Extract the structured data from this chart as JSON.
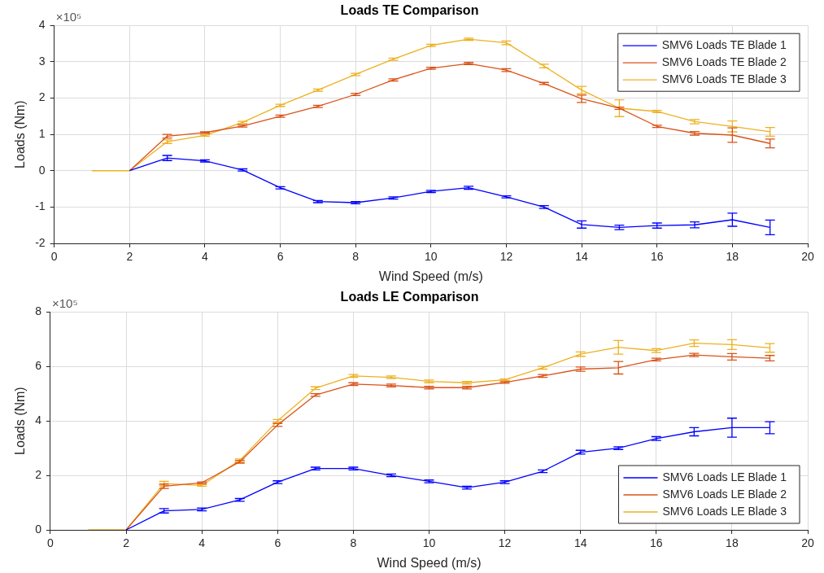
{
  "chart_data": [
    {
      "type": "line",
      "title": "Loads TE Comparison",
      "xlabel": "Wind Speed (m/s)",
      "ylabel": "Loads (Nm)",
      "annotations": [
        "×10⁵"
      ],
      "x": [
        1,
        2,
        3,
        4,
        5,
        6,
        7,
        8,
        9,
        10,
        11,
        12,
        13,
        14,
        15,
        16,
        17,
        18,
        19
      ],
      "xlim": [
        0,
        20
      ],
      "xticks": [
        0,
        2,
        4,
        6,
        8,
        10,
        12,
        14,
        16,
        18,
        20
      ],
      "ylim": [
        -2,
        4
      ],
      "yticks": [
        -2,
        -1,
        0,
        1,
        2,
        3,
        4
      ],
      "grid": true,
      "legend": "top right",
      "marker": "none",
      "line_style": "solid",
      "series": [
        {
          "name": "SMV6 Loads TE Blade 1",
          "color": "#0000ff",
          "values": [
            null,
            0,
            0.35,
            0.27,
            0.02,
            -0.47,
            -0.85,
            -0.88,
            -0.75,
            -0.57,
            -0.47,
            -0.72,
            -1.0,
            -1.48,
            -1.56,
            -1.51,
            -1.49,
            -1.35,
            -1.56
          ],
          "errors": [
            null,
            null,
            0.07,
            0.03,
            0.03,
            0.03,
            0.03,
            0.03,
            0.03,
            0.03,
            0.04,
            0.03,
            0.04,
            0.1,
            0.06,
            0.07,
            0.08,
            0.18,
            0.2
          ]
        },
        {
          "name": "SMV6 Loads TE Blade 2",
          "color": "#d95319",
          "values": [
            null,
            0,
            0.95,
            1.05,
            1.23,
            1.5,
            1.77,
            2.1,
            2.5,
            2.82,
            2.95,
            2.77,
            2.4,
            1.98,
            1.72,
            1.22,
            1.03,
            0.98,
            0.75
          ],
          "errors": [
            null,
            null,
            0.05,
            0.02,
            0.03,
            0.03,
            0.03,
            0.03,
            0.03,
            0.03,
            0.03,
            0.04,
            0.03,
            0.1,
            0.03,
            0.03,
            0.05,
            0.2,
            0.12
          ]
        },
        {
          "name": "SMV6 Loads TE Blade 3",
          "color": "#edb120",
          "values": [
            0,
            0,
            0.8,
            0.97,
            1.33,
            1.8,
            2.22,
            2.65,
            3.07,
            3.45,
            3.62,
            3.52,
            2.88,
            2.22,
            1.72,
            1.63,
            1.35,
            1.22,
            1.07
          ],
          "errors": [
            null,
            null,
            0.05,
            0.02,
            0.03,
            0.03,
            0.03,
            0.03,
            0.03,
            0.03,
            0.03,
            0.05,
            0.05,
            0.1,
            0.23,
            0.03,
            0.06,
            0.15,
            0.12
          ]
        }
      ]
    },
    {
      "type": "line",
      "title": "Loads LE Comparison",
      "xlabel": "Wind Speed (m/s)",
      "ylabel": "Loads (Nm)",
      "annotations": [
        "×10⁵"
      ],
      "x": [
        1,
        2,
        3,
        4,
        5,
        6,
        7,
        8,
        9,
        10,
        11,
        12,
        13,
        14,
        15,
        16,
        17,
        18,
        19
      ],
      "xlim": [
        0,
        20
      ],
      "xticks": [
        0,
        2,
        4,
        6,
        8,
        10,
        12,
        14,
        16,
        18,
        20
      ],
      "ylim": [
        0,
        8
      ],
      "yticks": [
        0,
        2,
        4,
        6,
        8
      ],
      "grid": true,
      "legend": "bottom right",
      "marker": "none",
      "line_style": "solid",
      "series": [
        {
          "name": "SMV6 Loads LE Blade 1",
          "color": "#0000ff",
          "values": [
            null,
            0,
            0.7,
            0.75,
            1.1,
            1.75,
            2.25,
            2.25,
            2.0,
            1.78,
            1.55,
            1.75,
            2.15,
            2.85,
            3.0,
            3.35,
            3.6,
            3.75,
            3.75
          ],
          "errors": [
            null,
            null,
            0.08,
            0.05,
            0.05,
            0.05,
            0.05,
            0.05,
            0.05,
            0.05,
            0.05,
            0.05,
            0.05,
            0.07,
            0.05,
            0.07,
            0.15,
            0.35,
            0.22
          ]
        },
        {
          "name": "SMV6 Loads LE Blade 2",
          "color": "#d95319",
          "values": [
            null,
            0,
            1.6,
            1.73,
            2.5,
            3.85,
            4.95,
            5.35,
            5.3,
            5.22,
            5.22,
            5.41,
            5.65,
            5.9,
            5.95,
            6.25,
            6.42,
            6.35,
            6.3
          ],
          "errors": [
            null,
            null,
            0.08,
            0.03,
            0.05,
            0.05,
            0.05,
            0.05,
            0.05,
            0.05,
            0.05,
            0.03,
            0.05,
            0.08,
            0.23,
            0.05,
            0.06,
            0.12,
            0.1
          ]
        },
        {
          "name": "SMV6 Loads LE Blade 3",
          "color": "#edb120",
          "values": [
            0,
            0,
            1.7,
            1.63,
            2.55,
            4.0,
            5.2,
            5.65,
            5.6,
            5.45,
            5.4,
            5.51,
            5.95,
            6.45,
            6.7,
            6.58,
            6.85,
            6.8,
            6.68
          ],
          "errors": [
            null,
            null,
            0.08,
            0.03,
            0.05,
            0.05,
            0.05,
            0.05,
            0.05,
            0.05,
            0.05,
            0.03,
            0.05,
            0.08,
            0.25,
            0.07,
            0.12,
            0.18,
            0.16
          ]
        }
      ]
    }
  ]
}
